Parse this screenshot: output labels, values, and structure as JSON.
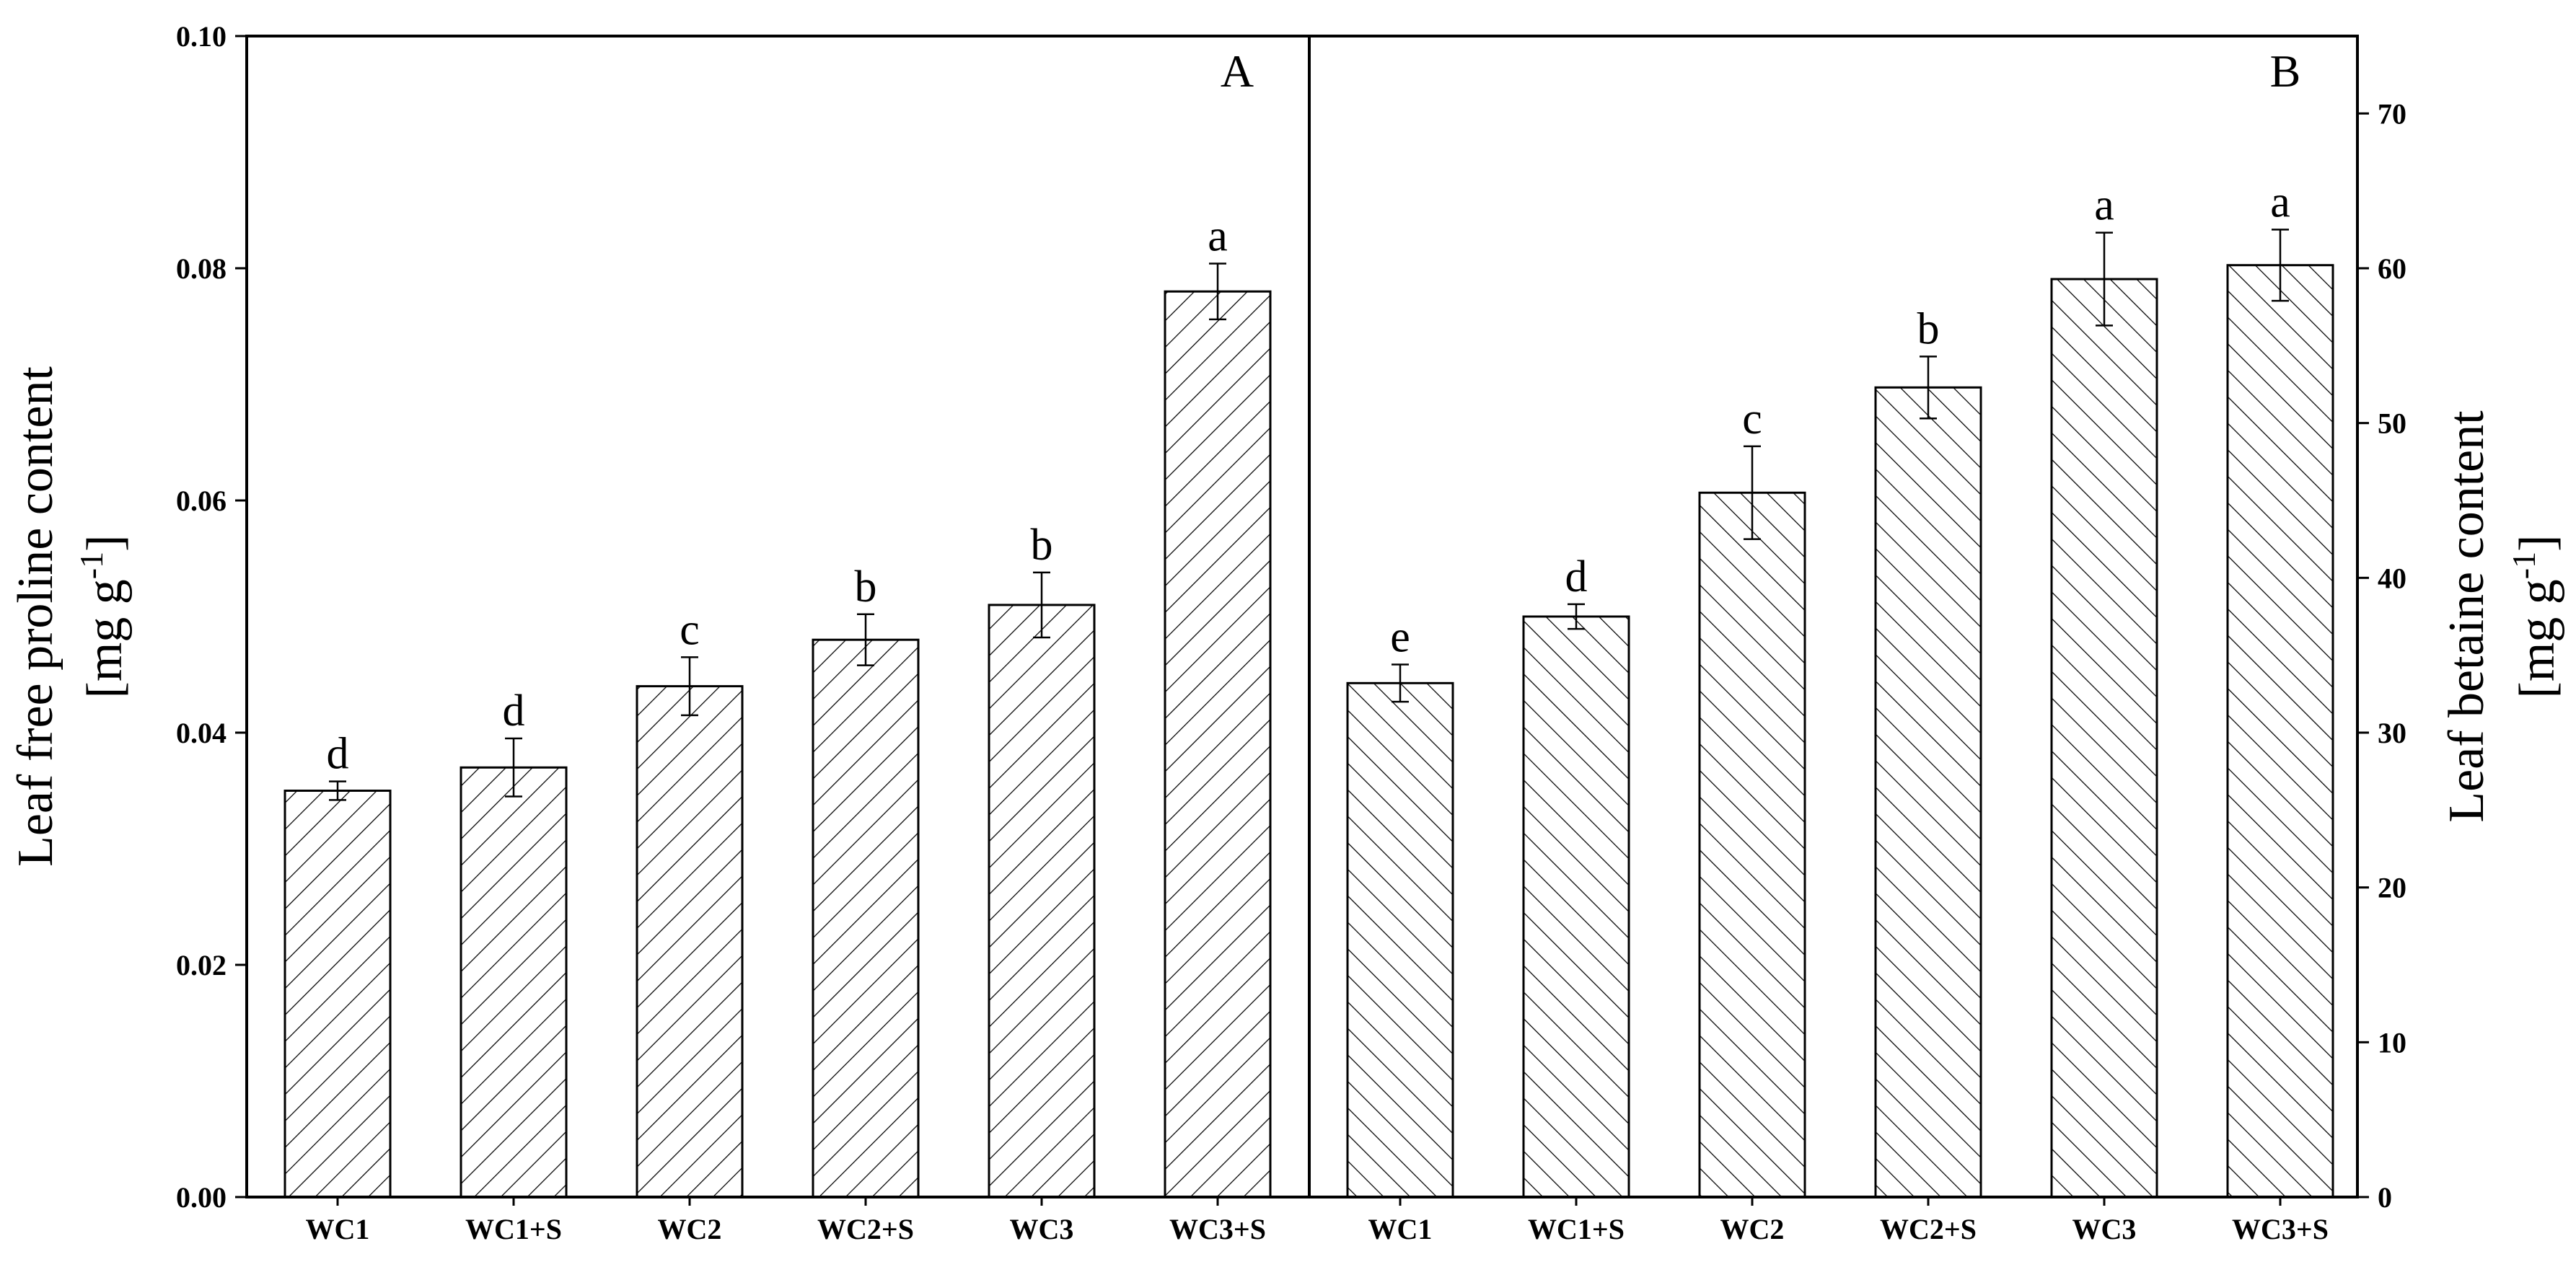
{
  "chart_data": [
    {
      "type": "bar",
      "panel_label": "A",
      "categories": [
        "WC1",
        "WC1+S",
        "WC2",
        "WC2+S",
        "WC3",
        "WC3+S"
      ],
      "values": [
        0.035,
        0.037,
        0.044,
        0.048,
        0.051,
        0.078
      ],
      "errors": [
        0.0008,
        0.0025,
        0.0025,
        0.0022,
        0.0028,
        0.0024
      ],
      "significance": [
        "d",
        "d",
        "c",
        "b",
        "b",
        "a"
      ],
      "ylabel_line1": "Leaf free proline content",
      "ylabel_line2_prefix": "[mg g",
      "ylabel_sup": "-1",
      "ylabel_line2_suffix": "]",
      "ylim": [
        0,
        0.1
      ],
      "yticks": [
        "0.00",
        "0.02",
        "0.04",
        "0.06",
        "0.08",
        "0.10"
      ],
      "y_axis_side": "left",
      "hatch": "forward-diagonal"
    },
    {
      "type": "bar",
      "panel_label": "B",
      "categories": [
        "WC1",
        "WC1+S",
        "WC2",
        "WC2+S",
        "WC3",
        "WC3+S"
      ],
      "values": [
        33.2,
        37.5,
        45.5,
        52.3,
        59.3,
        60.2
      ],
      "errors": [
        1.2,
        0.8,
        3.0,
        2.0,
        3.0,
        2.3
      ],
      "significance": [
        "e",
        "d",
        "c",
        "b",
        "a",
        "a"
      ],
      "ylabel_line1": "Leaf betaine content",
      "ylabel_line2_prefix": "[mg g",
      "ylabel_sup": "-1",
      "ylabel_line2_suffix": "]",
      "ylim": [
        0,
        75
      ],
      "yticks": [
        "0",
        "10",
        "20",
        "30",
        "40",
        "50",
        "60",
        "70"
      ],
      "y_axis_side": "right",
      "hatch": "backward-diagonal"
    }
  ],
  "colors": {
    "bar_fill": "#ffffff",
    "bar_stroke": "#000000",
    "hatch": "#000000"
  }
}
